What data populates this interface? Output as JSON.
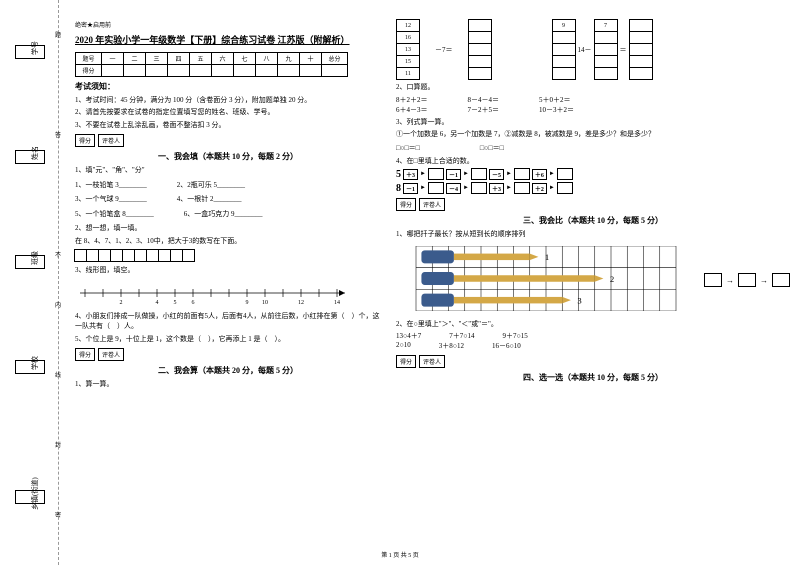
{
  "margin": {
    "labels": [
      "学号",
      "姓名",
      "班级",
      "学校",
      "乡镇(街道)"
    ],
    "dashes": [
      "题",
      "答",
      "不",
      "内",
      "线",
      "封",
      "密"
    ]
  },
  "header": {
    "secret": "绝密★启用前",
    "title": "2020 年实验小学一年级数学【下册】综合练习试卷 江苏版（附解析）"
  },
  "score_cols": [
    "题号",
    "一",
    "二",
    "三",
    "四",
    "五",
    "六",
    "七",
    "八",
    "九",
    "十",
    "总分"
  ],
  "score_row2": "得分",
  "notice_title": "考试须知：",
  "notices": [
    "1、考试时间：45 分钟，满分为 100 分（含卷面分 3 分），附加题单独 20 分。",
    "2、请首先按要求在试卷的指定位置填写您的姓名、班级、学号。",
    "3、不要在试卷上乱涂乱画，卷面不整洁扣 3 分。"
  ],
  "scorer": {
    "a": "得分",
    "b": "评卷人"
  },
  "s1": {
    "title": "一、我会填（本题共 10 分，每题 2 分）",
    "q1": "1、填\"元\"、\"角\"、\"分\"",
    "i1a": "1、一枝铅笔 3________",
    "i1b": "2、2瓶可乐 5________",
    "i1c": "3、一个气球 9________",
    "i1d": "4、一根针 2________",
    "i1e": "5、一个铅笔盒 8________",
    "i1f": "6、一盒巧克力 9________",
    "q2": "2、想一想，填一填。",
    "q2b": "在 8、4、7、1、2、3、10中，把大于3的数写在下面。",
    "q3": "3、线形图，填空。",
    "ticks": [
      2,
      4,
      5,
      6,
      9,
      10,
      12,
      14
    ],
    "q4": "4、小朋友们排成一队做操，小红的前面有5人，后面有4人，从前往后数，小红排在第（　）个，这一队共有（　）人。",
    "q5": "5、个位上是 9，十位上是 1，这个数是（　），它再添上 1 是（　）。"
  },
  "s2": {
    "title": "二、我会算（本题共 20 分，每题 5 分）",
    "q1": "1、算一算。",
    "leftcol": [
      "12",
      "16",
      "13",
      "15",
      "11"
    ],
    "mid": "－7＝",
    "rightnum": "9",
    "righteq": "14－",
    "righteq2": "7",
    "righteq3": "＝",
    "q2": "2、口算题。",
    "calc": [
      [
        "8＋2＋2＝",
        "8－4－4＝",
        "5＋0＋2＝"
      ],
      [
        "6＋4－3＝",
        "7－2＋5＝",
        "10－3＋2＝"
      ]
    ],
    "q3": "3、列式算一算。",
    "q3a": "①一个加数是 6，另一个加数是 7，②减数是 8，被减数是 9，差是多少？和是多少？",
    "eq": "□○□＝□",
    "q4": "4、在□里填上合适的数。",
    "chain1": {
      "start": "5",
      "ops": [
        "＋3",
        "－1",
        "－5",
        "＋6"
      ]
    },
    "chain2": {
      "start": "8",
      "ops": [
        "－1",
        "－4",
        "＋3",
        "＋2"
      ]
    }
  },
  "s3": {
    "title": "三、我会比（本题共 10 分，每题 5 分）",
    "q1": "1、哪把扦子最长？按从短到长的顺序排列",
    "q2": "2、在○里填上\"＞\"、\"＜\"或\"＝\"。",
    "rowA": [
      "13○4＋7",
      "7＋7○14",
      "9＋7○15"
    ],
    "rowB": [
      "2○10",
      "3＋8○12",
      "16－6○10"
    ]
  },
  "s4": {
    "title": "四、选一选（本题共 10 分，每题 5 分）"
  },
  "footer": "第 1 页 共 5 页",
  "colors": {
    "ochre": "#d4a847",
    "blue": "#3b5b8c"
  }
}
